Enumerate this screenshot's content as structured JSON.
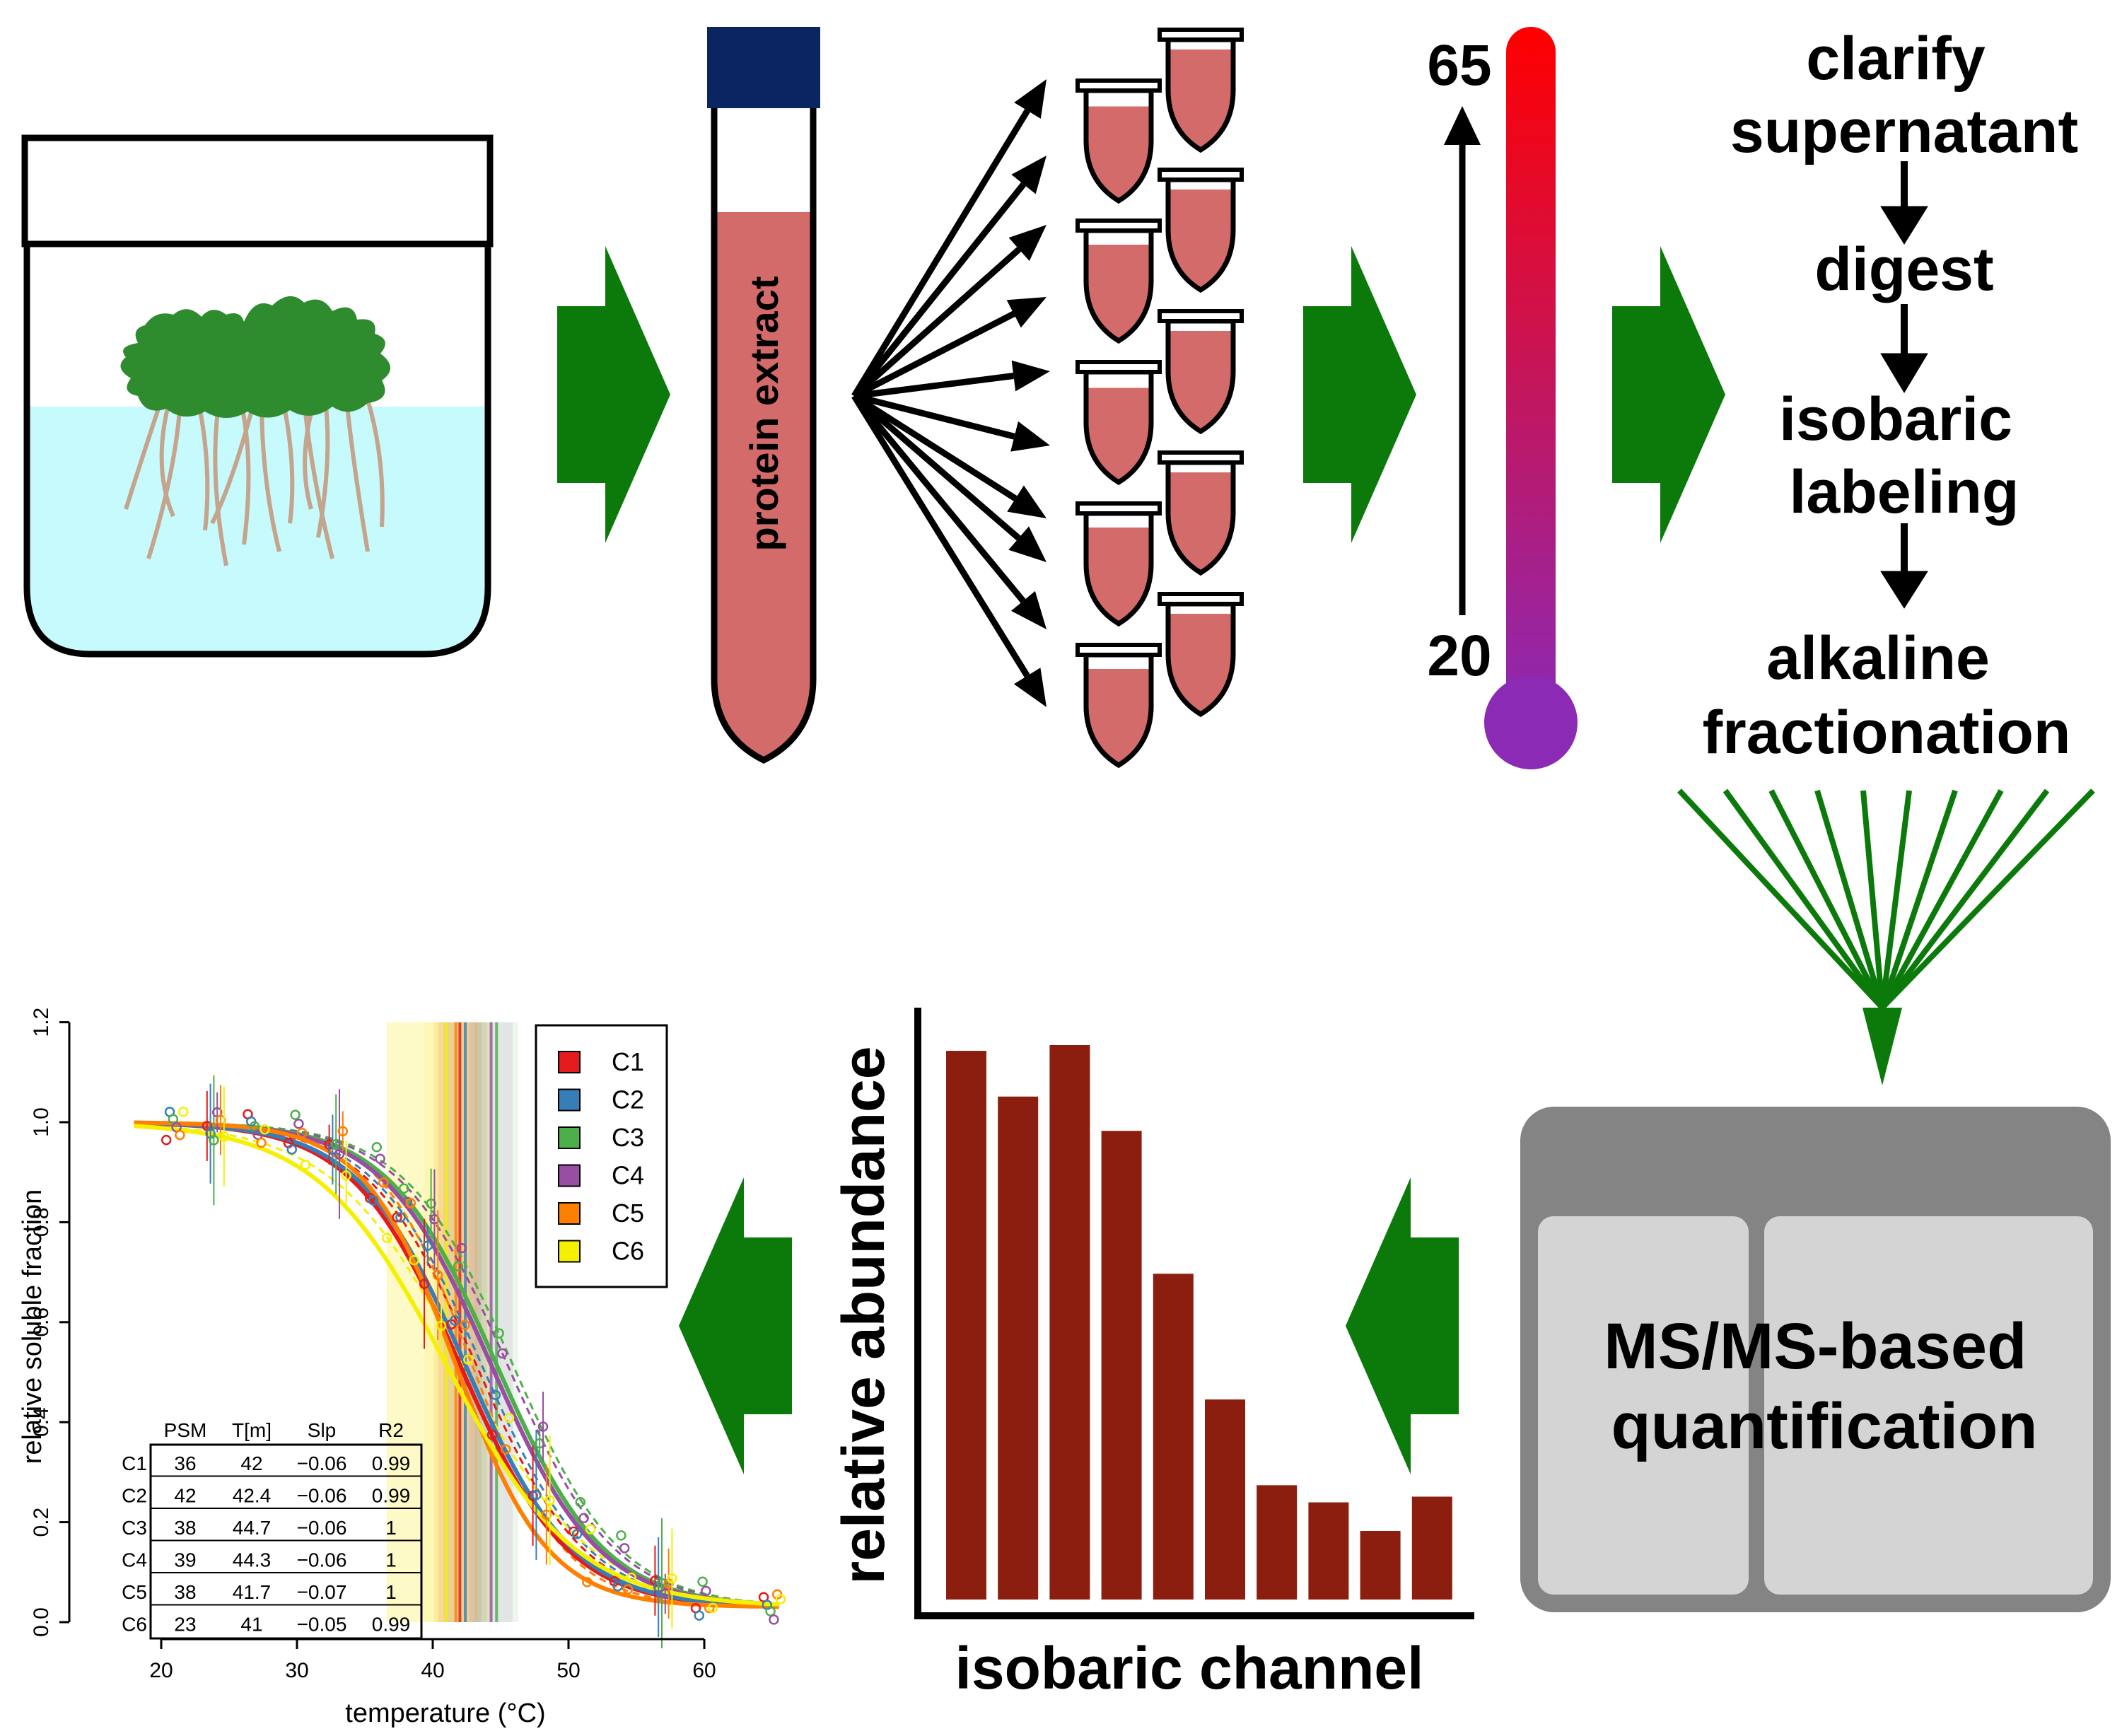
{
  "colors": {
    "green": "#0b7a0b",
    "tube_fill": "#d46b6b",
    "cap_navy": "#0a2561",
    "medium_blue": "#c6fafc",
    "leaf_green": "#2e8b2e",
    "root_tan": "#c4a48c",
    "bar_fill": "#8b1e0e",
    "ms_box_outer": "#848484",
    "ms_box_inner": "#d4d4d4",
    "thermo_top": "#ff0000",
    "thermo_bottom": "#8b2ab5"
  },
  "steps": {
    "protein_extract": "protein extract",
    "thermo_high": "65",
    "thermo_low": "20",
    "workflow": [
      "clarify\nsupernatant",
      "digest",
      "isobaric\nlabeling",
      "alkaline\nfractionation"
    ],
    "ms_title_line1": "MS/MS-based",
    "ms_title_line2": "quantification"
  },
  "abundance_chart": {
    "type": "bar",
    "ylabel": "relative abundance",
    "xlabel": "isobaric channel",
    "values": [
      0.96,
      0.88,
      0.97,
      0.82,
      0.57,
      0.35,
      0.2,
      0.17,
      0.12,
      0.18
    ]
  },
  "chart_data": {
    "type": "line",
    "xlabel": "temperature (°C)",
    "ylabel": "relative soluble fraction",
    "xlim": [
      18,
      66
    ],
    "ylim": [
      0,
      1.2
    ],
    "xticks": [
      "20",
      "30",
      "40",
      "50",
      "60"
    ],
    "yticks": [
      "0.0",
      "0.2",
      "0.4",
      "0.6",
      "0.8",
      "1.0",
      "1.2"
    ],
    "legend_position": "top-right",
    "series": [
      {
        "name": "C1",
        "color": "#e41a1c",
        "tm": 42,
        "slope": -0.06,
        "psm": 36,
        "r2": 0.99
      },
      {
        "name": "C2",
        "color": "#377eb8",
        "tm": 42.4,
        "slope": -0.06,
        "psm": 42,
        "r2": 0.99
      },
      {
        "name": "C3",
        "color": "#4daf4a",
        "tm": 44.7,
        "slope": -0.06,
        "psm": 38,
        "r2": 1
      },
      {
        "name": "C4",
        "color": "#984ea3",
        "tm": 44.3,
        "slope": -0.06,
        "psm": 39,
        "r2": 1
      },
      {
        "name": "C5",
        "color": "#ff7f00",
        "tm": 41.7,
        "slope": -0.07,
        "psm": 38,
        "r2": 1
      },
      {
        "name": "C6",
        "color": "#f5f000",
        "tm": 41,
        "slope": -0.05,
        "psm": 23,
        "r2": 0.99
      }
    ],
    "points_x": [
      21,
      24,
      27,
      30,
      33,
      36,
      38,
      40,
      42,
      45,
      48,
      51,
      54,
      57,
      60,
      65
    ],
    "table": {
      "headers": [
        "PSM",
        "T[m]",
        "Slp",
        "R2"
      ],
      "rows": [
        [
          "C1",
          "36",
          "42",
          "−0.06",
          "0.99"
        ],
        [
          "C2",
          "42",
          "42.4",
          "−0.06",
          "0.99"
        ],
        [
          "C3",
          "38",
          "44.7",
          "−0.06",
          "1"
        ],
        [
          "C4",
          "39",
          "44.3",
          "−0.06",
          "1"
        ],
        [
          "C5",
          "38",
          "41.7",
          "−0.07",
          "1"
        ],
        [
          "C6",
          "23",
          "41",
          "−0.05",
          "0.99"
        ]
      ]
    }
  }
}
